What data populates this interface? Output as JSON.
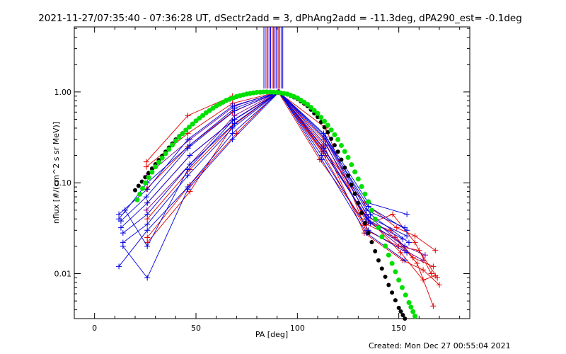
{
  "chart_data": {
    "type": "line",
    "title": "2021-11-27/07:35:40 - 07:36:28 UT, dSectr2add = 3, dPhAng2add = -11.3deg, dPA290_est= -0.1deg",
    "xlabel": "PA [deg]",
    "ylabel": "nflux [#/(cm^2 s sr MeV)]",
    "footer": "Created: Mon Dec 27 00:55:04 2021",
    "xlim": [
      -10,
      185
    ],
    "ylim": [
      0.0032,
      5.2
    ],
    "yscale": "log",
    "x_ticks": [
      {
        "value": 0,
        "label": "0"
      },
      {
        "value": 50,
        "label": "50"
      },
      {
        "value": 100,
        "label": "100"
      },
      {
        "value": 150,
        "label": "150"
      }
    ],
    "y_ticks": [
      {
        "value": 1,
        "label": "1.00"
      },
      {
        "value": 0.1,
        "label": "0.10"
      },
      {
        "value": 0.01,
        "label": "0.01"
      }
    ],
    "colors": {
      "red": "#e00000",
      "blue": "#0000e0",
      "purple": "#7a0090",
      "black": "#000000",
      "green": "#00e000"
    },
    "vertical_lines": [
      {
        "x": 83.5,
        "color": "#0000e0"
      },
      {
        "x": 84.5,
        "color": "#e00000"
      },
      {
        "x": 85.3,
        "color": "#0000e0"
      },
      {
        "x": 86.0,
        "color": "#7a0090"
      },
      {
        "x": 86.8,
        "color": "#0000e0"
      },
      {
        "x": 87.6,
        "color": "#e00000"
      },
      {
        "x": 88.3,
        "color": "#0000e0"
      },
      {
        "x": 89.0,
        "color": "#7a0090"
      },
      {
        "x": 89.7,
        "color": "#0000e0"
      },
      {
        "x": 90.5,
        "color": "#e00000"
      },
      {
        "x": 91.2,
        "color": "#0000e0"
      },
      {
        "x": 92.0,
        "color": "#7a0090"
      },
      {
        "x": 92.8,
        "color": "#0000e0"
      }
    ],
    "series": [
      {
        "color": "#e00000",
        "x": [
          25.5,
          46,
          68,
          90.5,
          114,
          133,
          147,
          158,
          166
        ],
        "y": [
          0.17,
          0.55,
          0.9,
          1.0,
          0.4,
          0.034,
          0.045,
          0.022,
          0.01
        ]
      },
      {
        "color": "#e00000",
        "x": [
          25.5,
          46,
          68,
          90.5,
          113,
          134,
          146,
          157,
          167
        ],
        "y": [
          0.15,
          0.35,
          0.75,
          1.0,
          0.3,
          0.037,
          0.03,
          0.015,
          0.012
        ]
      },
      {
        "color": "#e00000",
        "x": [
          25.5,
          46,
          68,
          90.5,
          112,
          133,
          149,
          158,
          168
        ],
        "y": [
          0.085,
          0.25,
          0.6,
          1.0,
          0.25,
          0.06,
          0.032,
          0.026,
          0.018
        ]
      },
      {
        "color": "#e00000",
        "x": [
          26,
          47,
          69,
          90.5,
          112,
          134,
          150,
          160,
          169
        ],
        "y": [
          0.06,
          0.2,
          0.5,
          1.0,
          0.22,
          0.03,
          0.02,
          0.018,
          0.009
        ]
      },
      {
        "color": "#e00000",
        "x": [
          26,
          47,
          69,
          90.5,
          113,
          133,
          152,
          162,
          170
        ],
        "y": [
          0.04,
          0.14,
          0.45,
          1.0,
          0.26,
          0.028,
          0.014,
          0.011,
          0.0075
        ]
      },
      {
        "color": "#e00000",
        "x": [
          26,
          47,
          70,
          90.5,
          114,
          135,
          151,
          162,
          168
        ],
        "y": [
          0.025,
          0.095,
          0.35,
          1.0,
          0.2,
          0.04,
          0.017,
          0.0085,
          0.0095
        ]
      },
      {
        "color": "#e00000",
        "x": [
          26,
          47,
          68,
          90.5,
          111,
          134,
          148,
          159,
          167
        ],
        "y": [
          0.022,
          0.08,
          0.42,
          1.0,
          0.18,
          0.035,
          0.025,
          0.013,
          0.0044
        ]
      },
      {
        "color": "#7a0090",
        "x": [
          25.5,
          47,
          69,
          90.5,
          113,
          134,
          153,
          163
        ],
        "y": [
          0.12,
          0.3,
          0.7,
          1.0,
          0.32,
          0.045,
          0.02,
          0.016
        ]
      },
      {
        "color": "#7a0090",
        "x": [
          25.5,
          47,
          69,
          90.5,
          113,
          135,
          153,
          162
        ],
        "y": [
          0.05,
          0.16,
          0.55,
          1.0,
          0.24,
          0.038,
          0.018,
          0.014
        ]
      },
      {
        "color": "#0000e0",
        "x": [
          12,
          26,
          46,
          68,
          91,
          113,
          135,
          154
        ],
        "y": [
          0.045,
          0.085,
          0.3,
          0.7,
          1.0,
          0.35,
          0.06,
          0.045
        ]
      },
      {
        "color": "#0000e0",
        "x": [
          13,
          25.5,
          46,
          69,
          91,
          114,
          134,
          153
        ],
        "y": [
          0.038,
          0.07,
          0.24,
          0.62,
          1.0,
          0.3,
          0.05,
          0.032
        ]
      },
      {
        "color": "#0000e0",
        "x": [
          13,
          26,
          47,
          69,
          91,
          114,
          135,
          154
        ],
        "y": [
          0.032,
          0.06,
          0.2,
          0.5,
          1.0,
          0.26,
          0.042,
          0.026
        ]
      },
      {
        "color": "#0000e0",
        "x": [
          14,
          26,
          47,
          69,
          91,
          113,
          136,
          153
        ],
        "y": [
          0.028,
          0.045,
          0.16,
          0.45,
          1.0,
          0.22,
          0.036,
          0.02
        ]
      },
      {
        "color": "#0000e0",
        "x": [
          14,
          26,
          46,
          68,
          91,
          112,
          135,
          154
        ],
        "y": [
          0.022,
          0.035,
          0.12,
          0.4,
          1.0,
          0.2,
          0.03,
          0.017
        ]
      },
      {
        "color": "#0000e0",
        "x": [
          12,
          26,
          46,
          68,
          91,
          112,
          134,
          153
        ],
        "y": [
          0.012,
          0.03,
          0.09,
          0.35,
          1.0,
          0.18,
          0.028,
          0.014
        ]
      },
      {
        "color": "#0000e0",
        "x": [
          15,
          26,
          46,
          68,
          91,
          113,
          134,
          152
        ],
        "y": [
          0.05,
          0.02,
          0.14,
          0.48,
          1.0,
          0.24,
          0.04,
          0.024
        ]
      },
      {
        "color": "#0000e0",
        "x": [
          14,
          26,
          46,
          68,
          91,
          114,
          135,
          154
        ],
        "y": [
          0.02,
          0.009,
          0.085,
          0.3,
          1.0,
          0.3,
          0.055,
          0.03
        ]
      },
      {
        "color": "#0000e0",
        "x": [
          12,
          26,
          47,
          69,
          91,
          114,
          136,
          155
        ],
        "y": [
          0.04,
          0.1,
          0.26,
          0.66,
          1.0,
          0.32,
          0.045,
          0.022
        ]
      }
    ],
    "black_curve": {
      "x": [
        20,
        25,
        30,
        35,
        40,
        45,
        50,
        55,
        60,
        65,
        70,
        75,
        80,
        85,
        90,
        95,
        100,
        105,
        110,
        115,
        120,
        125,
        130,
        135,
        140,
        145,
        150,
        153
      ],
      "y": [
        0.083,
        0.115,
        0.16,
        0.22,
        0.3,
        0.38,
        0.48,
        0.59,
        0.7,
        0.8,
        0.88,
        0.95,
        0.99,
        1.0,
        0.99,
        0.94,
        0.84,
        0.7,
        0.53,
        0.36,
        0.22,
        0.12,
        0.06,
        0.028,
        0.014,
        0.0075,
        0.0042,
        0.0032
      ]
    },
    "green_curve": {
      "x": [
        21,
        25,
        30,
        35,
        40,
        45,
        50,
        55,
        60,
        65,
        70,
        75,
        80,
        85,
        90,
        95,
        100,
        105,
        110,
        115,
        120,
        125,
        130,
        135,
        140,
        145,
        150,
        155,
        158
      ],
      "y": [
        0.065,
        0.1,
        0.15,
        0.21,
        0.29,
        0.38,
        0.48,
        0.59,
        0.7,
        0.81,
        0.89,
        0.95,
        0.99,
        1.0,
        0.99,
        0.95,
        0.86,
        0.73,
        0.58,
        0.43,
        0.3,
        0.19,
        0.11,
        0.062,
        0.032,
        0.016,
        0.0085,
        0.0048,
        0.0034
      ]
    }
  }
}
